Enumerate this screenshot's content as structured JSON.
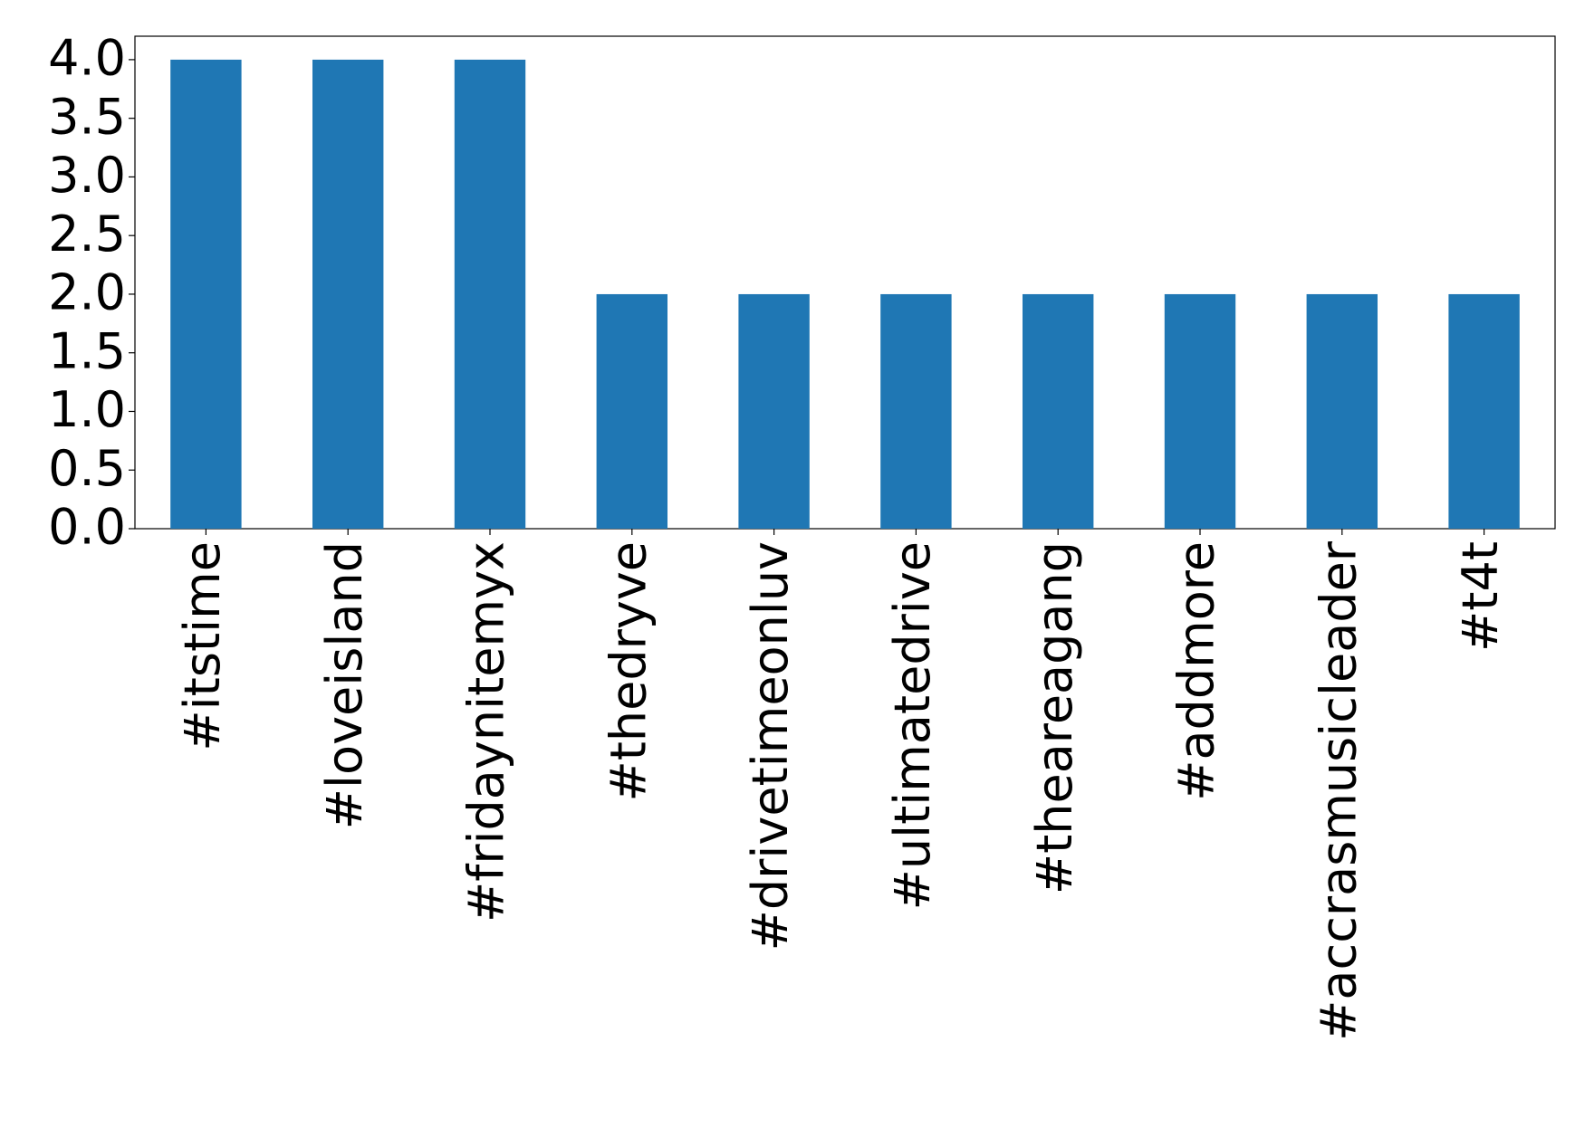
{
  "chart_data": {
    "type": "bar",
    "categories": [
      "#itstime",
      "#loveisland",
      "#fridaynitemyx",
      "#thedryve",
      "#drivetimeonluv",
      "#ultimatedrive",
      "#theareagang",
      "#addmore",
      "#accrasmusicleader",
      "#t4t"
    ],
    "values": [
      4,
      4,
      4,
      2,
      2,
      2,
      2,
      2,
      2,
      2
    ],
    "color": "#1f77b4",
    "ylim": [
      0,
      4.2
    ],
    "yticks": [
      {
        "value": 0,
        "label": "0.0"
      },
      {
        "value": 0.5,
        "label": "0.5"
      },
      {
        "value": 1,
        "label": "1.0"
      },
      {
        "value": 1.5,
        "label": "1.5"
      },
      {
        "value": 2,
        "label": "2.0"
      },
      {
        "value": 2.5,
        "label": "2.5"
      },
      {
        "value": 3,
        "label": "3.0"
      },
      {
        "value": 3.5,
        "label": "3.5"
      },
      {
        "value": 4,
        "label": "4.0"
      }
    ],
    "grid": false
  }
}
